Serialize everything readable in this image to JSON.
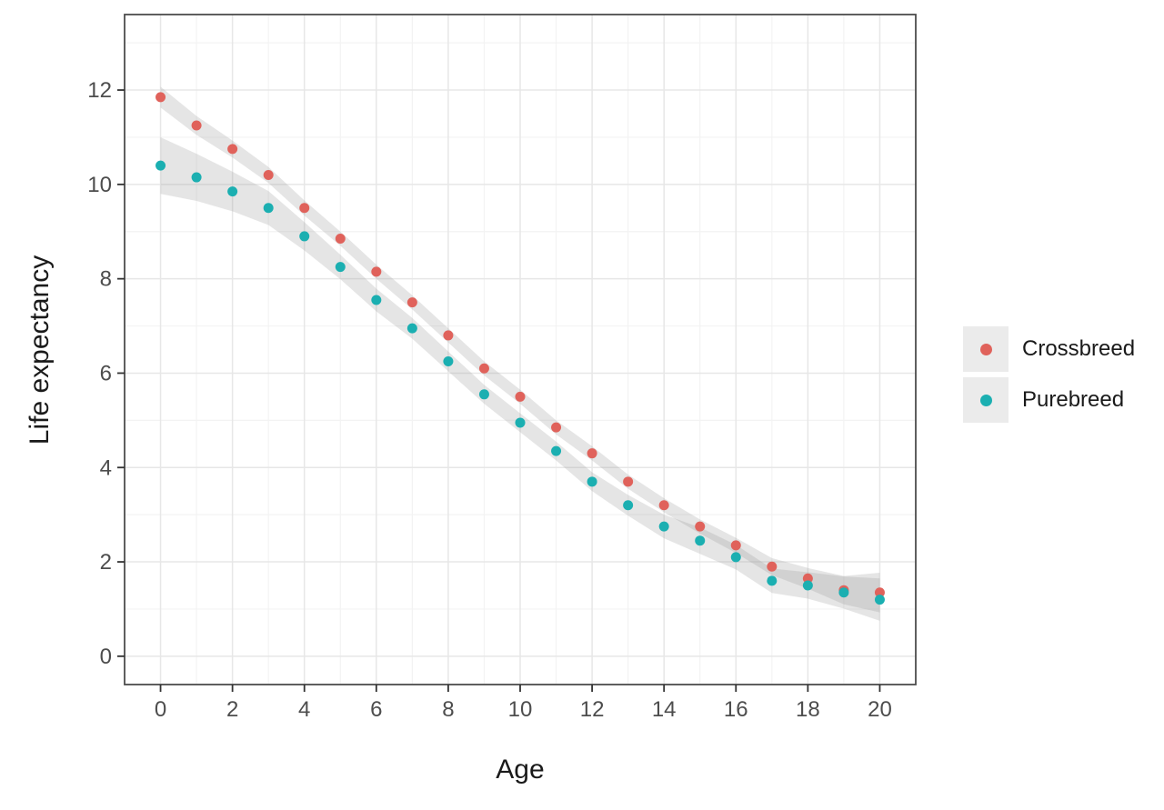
{
  "chart_data": {
    "type": "scatter",
    "title": "",
    "xlabel": "Age",
    "ylabel": "Life expectancy",
    "xlim": [
      -1,
      21
    ],
    "ylim": [
      -0.6,
      13.6
    ],
    "x_ticks": [
      0,
      2,
      4,
      6,
      8,
      10,
      12,
      14,
      16,
      18,
      20
    ],
    "y_ticks": [
      0,
      2,
      4,
      6,
      8,
      10,
      12
    ],
    "x_minor": [
      1,
      3,
      5,
      7,
      9,
      11,
      13,
      15,
      17,
      19
    ],
    "y_minor": [
      1,
      3,
      5,
      7,
      9,
      11,
      13
    ],
    "grid": "major+minor",
    "legend_position": "right",
    "x": [
      0,
      1,
      2,
      3,
      4,
      5,
      6,
      7,
      8,
      9,
      10,
      11,
      12,
      13,
      14,
      15,
      16,
      17,
      18,
      19,
      20
    ],
    "series": [
      {
        "name": "Crossbreed",
        "color": "#E0625B",
        "values": [
          11.85,
          11.25,
          10.75,
          10.2,
          9.5,
          8.85,
          8.15,
          7.5,
          6.8,
          6.1,
          5.5,
          4.85,
          4.3,
          3.7,
          3.2,
          2.75,
          2.35,
          1.9,
          1.65,
          1.4,
          1.35
        ],
        "ribbon_low": [
          11.63,
          11.05,
          10.57,
          10.03,
          9.34,
          8.7,
          8.0,
          7.35,
          6.65,
          5.95,
          5.35,
          4.7,
          4.15,
          3.55,
          3.05,
          2.6,
          2.19,
          1.72,
          1.43,
          1.1,
          0.93
        ],
        "ribbon_high": [
          12.07,
          11.45,
          10.93,
          10.37,
          9.66,
          9.0,
          8.3,
          7.65,
          6.95,
          6.25,
          5.65,
          5.0,
          4.45,
          3.85,
          3.35,
          2.9,
          2.51,
          2.08,
          1.87,
          1.7,
          1.77
        ]
      },
      {
        "name": "Purebreed",
        "color": "#1BAFB1",
        "values": [
          10.4,
          10.15,
          9.85,
          9.5,
          8.9,
          8.25,
          7.55,
          6.95,
          6.25,
          5.55,
          4.95,
          4.35,
          3.7,
          3.2,
          2.75,
          2.45,
          2.1,
          1.6,
          1.5,
          1.35,
          1.2
        ],
        "ribbon_low": [
          9.8,
          9.65,
          9.43,
          9.14,
          8.6,
          7.99,
          7.31,
          6.73,
          6.04,
          5.35,
          4.75,
          4.15,
          3.5,
          2.98,
          2.5,
          2.17,
          1.84,
          1.34,
          1.22,
          1.01,
          0.75
        ],
        "ribbon_high": [
          11.0,
          10.65,
          10.27,
          9.86,
          9.2,
          8.51,
          7.79,
          7.17,
          6.46,
          5.75,
          5.15,
          4.55,
          3.9,
          3.42,
          3.0,
          2.73,
          2.36,
          1.86,
          1.78,
          1.69,
          1.65
        ]
      }
    ],
    "ribbon_color": "#9a9a9a",
    "ribbon_opacity": 0.26
  },
  "style_colors": {
    "panel_border": "#4d4d4d",
    "grid_major": "#e7e7e7",
    "grid_minor": "#f3f3f3",
    "tick_mark": "#333333",
    "tick_label": "#4d4d4d",
    "legend_key_bg": "#ebebeb"
  }
}
